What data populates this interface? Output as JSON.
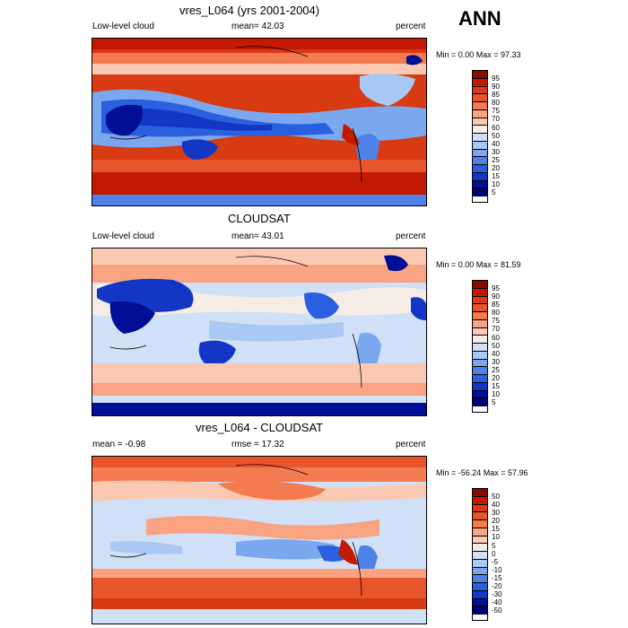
{
  "season_label": "ANN",
  "panels": [
    {
      "title": "vres_L064 (yrs 2001-2004)",
      "left_label": "Low-level cloud",
      "center_label": "mean=  42.03",
      "right_label": "percent",
      "minmax": "Min =   0.00 Max =  97.33",
      "colorbar_labels": [
        "95",
        "90",
        "85",
        "80",
        "75",
        "70",
        "60",
        "50",
        "40",
        "30",
        "25",
        "20",
        "15",
        "10",
        "5"
      ]
    },
    {
      "title": "CLOUDSAT",
      "left_label": "Low-level cloud",
      "center_label": "mean=  43.01",
      "right_label": "percent",
      "minmax": "Min =   0.00 Max =  81.59",
      "colorbar_labels": [
        "95",
        "90",
        "85",
        "80",
        "75",
        "70",
        "60",
        "50",
        "40",
        "30",
        "25",
        "20",
        "15",
        "10",
        "5"
      ]
    },
    {
      "title": "vres_L064 - CLOUDSAT",
      "left_label": "mean =  -0.98",
      "center_label": "rmse =  17.32",
      "right_label": "percent",
      "minmax": "Min = -56.24 Max =  57.96",
      "colorbar_labels": [
        "50",
        "40",
        "30",
        "20",
        "15",
        "10",
        "5",
        "0",
        "-5",
        "-10",
        "-15",
        "-20",
        "-30",
        "-40",
        "-50"
      ]
    }
  ],
  "colors": {
    "palette": [
      "#8b0a00",
      "#c21900",
      "#d83a12",
      "#e8552b",
      "#f47a50",
      "#f9a383",
      "#fbc9b2",
      "#f5ece6",
      "#cfe0f7",
      "#a9c8f4",
      "#7aa7ee",
      "#4f82e8",
      "#2a5fe0",
      "#1337c4",
      "#000f96",
      "#000070"
    ]
  }
}
